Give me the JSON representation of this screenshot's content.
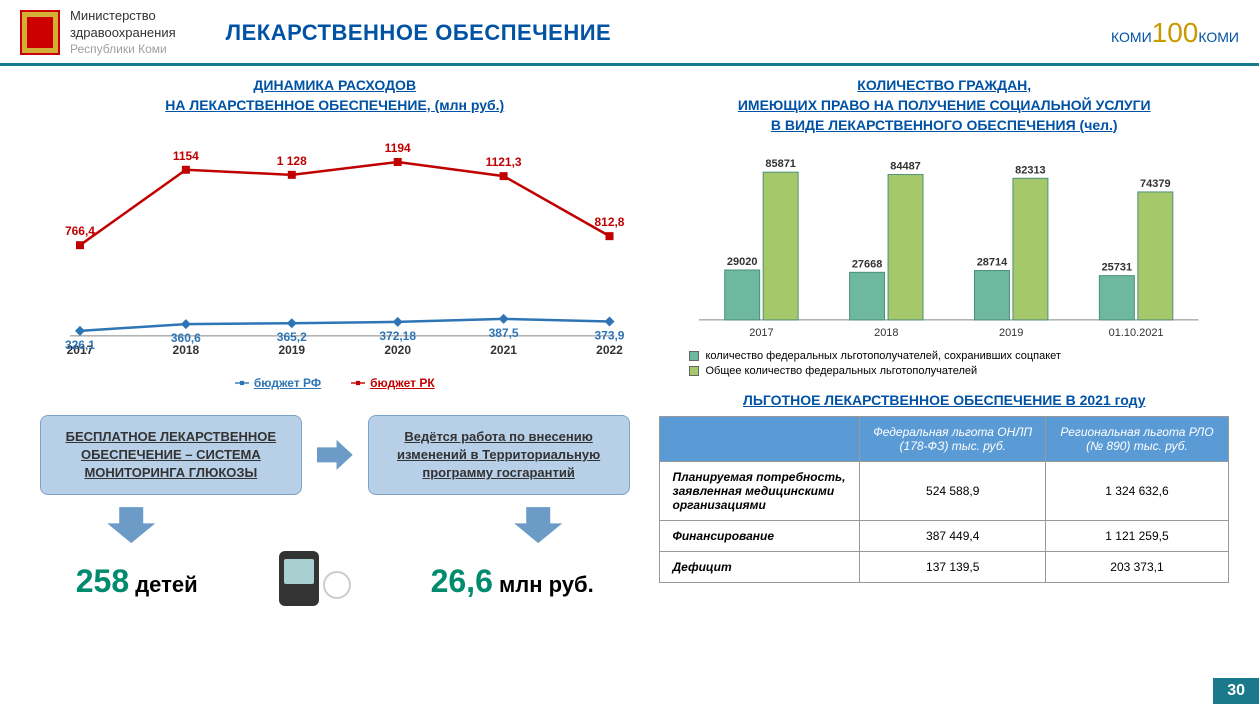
{
  "header": {
    "org_line1": "Министерство",
    "org_line2": "здравоохранения",
    "org_line3": "Республики Коми",
    "title": "ЛЕКАРСТВЕННОЕ ОБЕСПЕЧЕНИЕ",
    "logo100_left": "КОМИ",
    "logo100_num": "100",
    "logo100_right": "КОМИ"
  },
  "line_chart": {
    "type": "line",
    "title": "ДИНАМИКА РАСХОДОВ\nНА ЛЕКАРСТВЕННОЕ ОБЕСПЕЧЕНИЕ, (млн руб.)",
    "categories": [
      "2017",
      "2018",
      "2019",
      "2020",
      "2021",
      "2022"
    ],
    "series": [
      {
        "name": "бюджет РФ",
        "color": "#2e75b6",
        "values": [
          326.1,
          360.6,
          365.2,
          372.18,
          387.5,
          373.9
        ],
        "labels": [
          "326,1",
          "360,6",
          "365,2",
          "372,18",
          "387,5",
          "373,9"
        ],
        "marker": "diamond"
      },
      {
        "name": "бюджет РК",
        "color": "#c00000",
        "values": [
          766.4,
          1154,
          1128,
          1194,
          1121.3,
          812.8
        ],
        "labels": [
          "766,4",
          "1154",
          "1 128",
          "1194",
          "1121,3",
          "812,8"
        ],
        "marker": "square"
      }
    ],
    "ylim": [
      300,
      1250
    ],
    "background": "#ffffff",
    "label_fontsize": 12,
    "axis_fontsize": 12
  },
  "boxes": {
    "box1": "БЕСПЛАТНОЕ ЛЕКАРСТВЕННОЕ ОБЕСПЕЧЕНИЕ – СИСТЕМА МОНИТОРИНГА ГЛЮКОЗЫ",
    "box2": "Ведётся работа по внесению изменений в Территориальную программу госгарантий",
    "stat1_num": "258",
    "stat1_txt": " детей",
    "stat2_num": "26,6",
    "stat2_txt": " млн руб."
  },
  "bar_chart": {
    "type": "bar_grouped",
    "title": "КОЛИЧЕСТВО ГРАЖДАН,\nИМЕЮЩИХ ПРАВО НА ПОЛУЧЕНИЕ СОЦИАЛЬНОЙ УСЛУГИ\nВ ВИДЕ ЛЕКАРСТВЕННОГО ОБЕСПЕЧЕНИЯ (чел.)",
    "categories": [
      "2017",
      "2018",
      "2019",
      "01.10.2021"
    ],
    "series": [
      {
        "name": "количество федеральных льготополучателей, сохранивших соцпакет",
        "color": "#6eb8a0",
        "values": [
          29020,
          27668,
          28714,
          25731
        ]
      },
      {
        "name": "Общее количество федеральных льготополучателей",
        "color": "#a5c96a",
        "values": [
          85871,
          84487,
          82313,
          74379
        ]
      }
    ],
    "ylim": [
      0,
      90000
    ],
    "bar_border": "#4d8f7a",
    "label_fontsize": 11
  },
  "table": {
    "title": "ЛЬГОТНОЕ ЛЕКАРСТВЕННОЕ ОБЕСПЕЧЕНИЕ В 2021 году",
    "header_bg": "#5b9bd5",
    "columns": [
      "",
      "Федеральная льгота ОНЛП (178-ФЗ) тыс. руб.",
      "Региональная льгота РЛО (№ 890) тыс. руб."
    ],
    "rows": [
      [
        "Планируемая потребность, заявленная медицинскими организациями",
        "524 588,9",
        "1 324 632,6"
      ],
      [
        "Финансирование",
        "387 449,4",
        "1 121 259,5"
      ],
      [
        "Дефицит",
        "137 139,5",
        "203 373,1"
      ]
    ]
  },
  "page_number": "30",
  "colors": {
    "accent": "#0052a5",
    "border": "#1a7a8c",
    "arrow": "#6b9bc6",
    "green": "#008a6e",
    "box_bg": "#b8cfe8"
  }
}
